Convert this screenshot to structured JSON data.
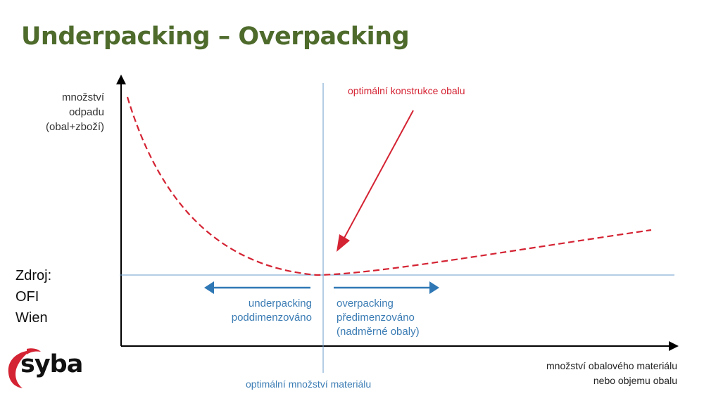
{
  "title": "Underpacking – Overpacking",
  "y_axis_label": [
    "množství",
    "odpadu",
    "(obal+zboží)"
  ],
  "x_axis_label": [
    "množství obalového materiálu",
    "nebo objemu obalu"
  ],
  "optimal_material_label": "optimální množství materiálu",
  "optimal_design_label": "optimální konstrukce obalu",
  "underpacking": [
    "underpacking",
    "poddimenzováno"
  ],
  "overpacking": [
    "overpacking",
    "předimenzováno",
    "(nadměrné obaly)"
  ],
  "source": [
    "Zdroj:",
    "OFI",
    "Wien"
  ],
  "logo": "syba",
  "colors": {
    "title": "#4e6b2c",
    "curve": "#d42333",
    "reference": "#3b7cb4",
    "axis": "#000000"
  }
}
